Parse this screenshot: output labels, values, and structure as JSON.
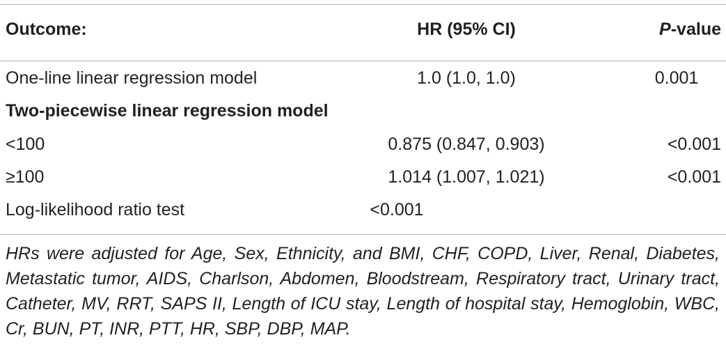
{
  "table": {
    "headers": {
      "outcome": "Outcome:",
      "hr": "HR (95% CI)",
      "p_italic": "P",
      "p_rest": "-value"
    },
    "rows": [
      {
        "outcome": "One-line linear regression model",
        "hr": "1.0 (1.0, 1.0)",
        "p": "0.001"
      },
      {
        "outcome": "Two-piecewise linear regression model",
        "hr": "",
        "p": ""
      },
      {
        "outcome": "<100",
        "hr": "0.875 (0.847, 0.903)",
        "p": "<0.001"
      },
      {
        "outcome": "≥100",
        "hr": "1.014 (1.007, 1.021)",
        "p": "<0.001"
      },
      {
        "outcome": "Log-likelihood ratio test",
        "hr": "<0.001",
        "p": ""
      }
    ],
    "footnote": "HRs were adjusted for Age, Sex, Ethnicity, and BMI, CHF, COPD, Liver, Renal, Diabetes, Metastatic tumor, AIDS, Charlson, Abdomen, Bloodstream, Respiratory tract, Urinary tract, Catheter, MV, RRT, SAPS II, Length of ICU stay, Length of hospital stay, Hemoglobin, WBC, Cr, BUN, PT, INR, PTT, HR, SBP, DBP, MAP."
  }
}
